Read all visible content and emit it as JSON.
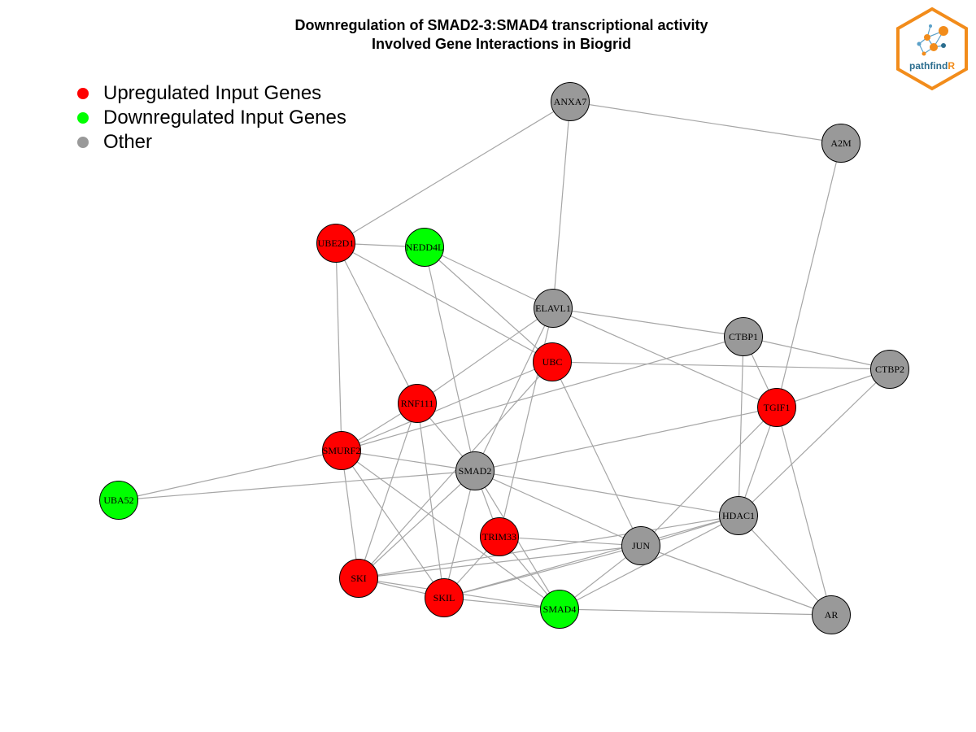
{
  "title": {
    "line1": "Downregulation of SMAD2-3:SMAD4 transcriptional activity",
    "line2": "Involved Gene Interactions in Biogrid"
  },
  "legend": [
    {
      "label": "Upregulated Input Genes",
      "color": "#ff0000"
    },
    {
      "label": "Downregulated Input Genes",
      "color": "#00ff00"
    },
    {
      "label": "Other",
      "color": "#999999"
    }
  ],
  "logo": {
    "text_main": "pathfind",
    "text_accent": "R",
    "accent_color": "#f28c1b",
    "main_color": "#2c6e8f"
  },
  "colors": {
    "up": "#ff0000",
    "down": "#00ff00",
    "other": "#999999",
    "edge": "#a6a6a6"
  },
  "nodes": [
    {
      "id": "ANXA7",
      "status": "other"
    },
    {
      "id": "A2M",
      "status": "other"
    },
    {
      "id": "UBE2D1",
      "status": "up"
    },
    {
      "id": "NEDD4L",
      "status": "down"
    },
    {
      "id": "ELAVL1",
      "status": "other"
    },
    {
      "id": "CTBP1",
      "status": "other"
    },
    {
      "id": "CTBP2",
      "status": "other"
    },
    {
      "id": "UBC",
      "status": "up"
    },
    {
      "id": "TGIF1",
      "status": "up"
    },
    {
      "id": "RNF111",
      "status": "up"
    },
    {
      "id": "SMURF2",
      "status": "up"
    },
    {
      "id": "SMAD2",
      "status": "other"
    },
    {
      "id": "UBA52",
      "status": "down"
    },
    {
      "id": "HDAC1",
      "status": "other"
    },
    {
      "id": "TRIM33",
      "status": "up"
    },
    {
      "id": "JUN",
      "status": "other"
    },
    {
      "id": "SKI",
      "status": "up"
    },
    {
      "id": "SKIL",
      "status": "up"
    },
    {
      "id": "SMAD4",
      "status": "down"
    },
    {
      "id": "AR",
      "status": "other"
    }
  ],
  "edges": [
    [
      "ANXA7",
      "A2M"
    ],
    [
      "ANXA7",
      "UBE2D1"
    ],
    [
      "ANXA7",
      "ELAVL1"
    ],
    [
      "A2M",
      "TGIF1"
    ],
    [
      "UBE2D1",
      "NEDD4L"
    ],
    [
      "UBE2D1",
      "UBC"
    ],
    [
      "UBE2D1",
      "RNF111"
    ],
    [
      "UBE2D1",
      "SMURF2"
    ],
    [
      "NEDD4L",
      "ELAVL1"
    ],
    [
      "NEDD4L",
      "UBC"
    ],
    [
      "NEDD4L",
      "SMAD2"
    ],
    [
      "ELAVL1",
      "CTBP1"
    ],
    [
      "ELAVL1",
      "TGIF1"
    ],
    [
      "ELAVL1",
      "RNF111"
    ],
    [
      "ELAVL1",
      "SMAD2"
    ],
    [
      "ELAVL1",
      "TRIM33"
    ],
    [
      "CTBP1",
      "CTBP2"
    ],
    [
      "CTBP1",
      "TGIF1"
    ],
    [
      "CTBP1",
      "HDAC1"
    ],
    [
      "CTBP1",
      "SMURF2"
    ],
    [
      "CTBP2",
      "UBC"
    ],
    [
      "CTBP2",
      "TGIF1"
    ],
    [
      "CTBP2",
      "HDAC1"
    ],
    [
      "UBC",
      "SMURF2"
    ],
    [
      "UBC",
      "JUN"
    ],
    [
      "UBC",
      "SKI"
    ],
    [
      "TGIF1",
      "SMAD2"
    ],
    [
      "TGIF1",
      "HDAC1"
    ],
    [
      "TGIF1",
      "JUN"
    ],
    [
      "TGIF1",
      "AR"
    ],
    [
      "RNF111",
      "SMURF2"
    ],
    [
      "RNF111",
      "SMAD2"
    ],
    [
      "RNF111",
      "SKI"
    ],
    [
      "RNF111",
      "SKIL"
    ],
    [
      "SMURF2",
      "SMAD2"
    ],
    [
      "SMURF2",
      "UBA52"
    ],
    [
      "SMURF2",
      "SKI"
    ],
    [
      "SMURF2",
      "SKIL"
    ],
    [
      "SMURF2",
      "SMAD4"
    ],
    [
      "SMAD2",
      "UBA52"
    ],
    [
      "SMAD2",
      "HDAC1"
    ],
    [
      "SMAD2",
      "TRIM33"
    ],
    [
      "SMAD2",
      "JUN"
    ],
    [
      "SMAD2",
      "SKI"
    ],
    [
      "SMAD2",
      "SKIL"
    ],
    [
      "SMAD2",
      "SMAD4"
    ],
    [
      "TRIM33",
      "JUN"
    ],
    [
      "TRIM33",
      "SKIL"
    ],
    [
      "TRIM33",
      "SMAD4"
    ],
    [
      "HDAC1",
      "JUN"
    ],
    [
      "HDAC1",
      "SMAD4"
    ],
    [
      "HDAC1",
      "AR"
    ],
    [
      "HDAC1",
      "SKIL"
    ],
    [
      "HDAC1",
      "SKI"
    ],
    [
      "JUN",
      "SKI"
    ],
    [
      "JUN",
      "SKIL"
    ],
    [
      "JUN",
      "SMAD4"
    ],
    [
      "JUN",
      "AR"
    ],
    [
      "SKI",
      "SKIL"
    ],
    [
      "SKI",
      "SMAD4"
    ],
    [
      "SKIL",
      "SMAD4"
    ],
    [
      "SMAD4",
      "AR"
    ]
  ]
}
